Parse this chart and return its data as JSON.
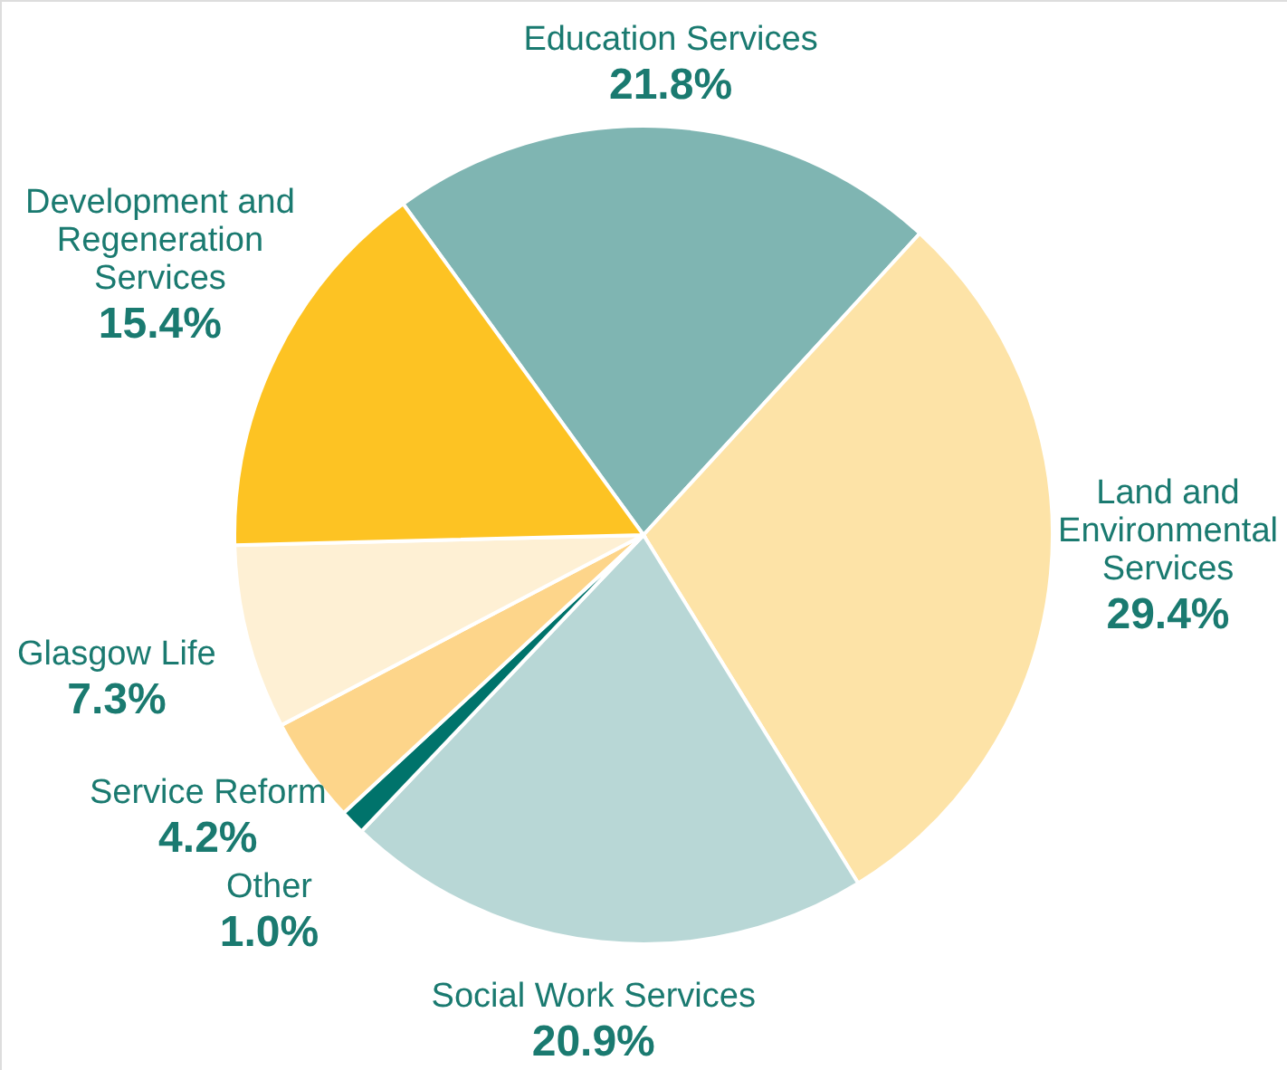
{
  "chart_data": {
    "type": "pie",
    "categories": [
      "Education Services",
      "Land and Environmental Services",
      "Social Work Services",
      "Other",
      "Service Reform",
      "Glasgow Life",
      "Development and Regeneration Services"
    ],
    "values": [
      21.8,
      29.4,
      20.9,
      1.0,
      4.2,
      7.3,
      15.4
    ],
    "colors": [
      "#7fb5b2",
      "#fde3a7",
      "#b8d7d6",
      "#00736b",
      "#fdd58a",
      "#fef0d4",
      "#fdc323"
    ],
    "value_labels": [
      "21.8%",
      "29.4%",
      "20.9%",
      "1.0%",
      "4.2%",
      "7.3%",
      "15.4%"
    ]
  }
}
